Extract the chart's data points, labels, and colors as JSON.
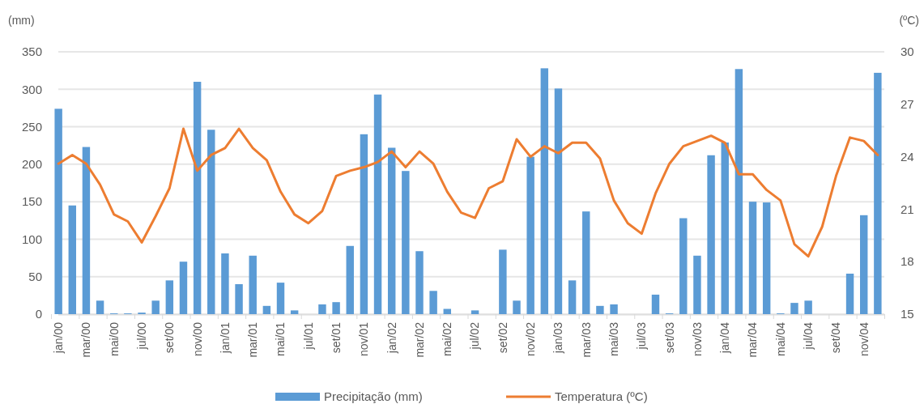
{
  "chart_data": {
    "type": "bar",
    "ylabel": "(mm)",
    "y2label": "(ºC)",
    "categories": [
      "jan/00",
      null,
      "mar/00",
      null,
      "mai/00",
      null,
      "jul/00",
      null,
      "set/00",
      null,
      "nov/00",
      null,
      "jan/01",
      null,
      "mar/01",
      null,
      "mai/01",
      null,
      "jul/01",
      null,
      "set/01",
      null,
      "nov/01",
      null,
      "jan/02",
      null,
      "mar/02",
      null,
      "mai/02",
      null,
      "jul/02",
      null,
      "set/02",
      null,
      "nov/02",
      null,
      "jan/03",
      null,
      "mar/03",
      null,
      "mai/03",
      null,
      "jul/03",
      null,
      "set/03",
      null,
      "nov/03",
      null,
      "jan/04",
      null,
      "mar/04",
      null,
      "mai/04",
      null,
      "jul/04",
      null,
      "set/04",
      null,
      "nov/04",
      null
    ],
    "series": [
      {
        "name": "Precipitação (mm)",
        "color": "#5b9bd5",
        "values": [
          274,
          145,
          223,
          18,
          1,
          1,
          2,
          18,
          45,
          70,
          310,
          246,
          81,
          40,
          78,
          11,
          42,
          5,
          0,
          13,
          16,
          91,
          240,
          293,
          222,
          191,
          84,
          31,
          7,
          0,
          5,
          0,
          86,
          18,
          210,
          328,
          301,
          45,
          137,
          11,
          13,
          0,
          0,
          26,
          1,
          128,
          78,
          212,
          229,
          327,
          150,
          149,
          1,
          15,
          18,
          0,
          0,
          54,
          132,
          322
        ]
      },
      {
        "name": "Temperatura (ºC)",
        "type": "line",
        "axis": "y2",
        "color": "#ed7d31",
        "values": [
          23.6,
          24.1,
          23.6,
          22.4,
          20.7,
          20.3,
          19.1,
          20.6,
          22.2,
          25.6,
          23.2,
          24.1,
          24.5,
          25.6,
          24.5,
          23.8,
          22.0,
          20.7,
          20.2,
          20.9,
          22.9,
          23.2,
          23.4,
          23.7,
          24.3,
          23.4,
          24.3,
          23.6,
          22.0,
          20.8,
          20.5,
          22.2,
          22.6,
          25.0,
          24.0,
          24.6,
          24.2,
          24.8,
          24.8,
          23.9,
          21.5,
          20.2,
          19.6,
          21.9,
          23.6,
          24.6,
          24.9,
          25.2,
          24.8,
          23.0,
          23.0,
          22.1,
          21.5,
          19.0,
          18.3,
          20.0,
          22.9,
          25.1,
          24.9,
          24.1
        ]
      }
    ],
    "ylim": [
      0,
      350
    ],
    "yticks": [
      0,
      50,
      100,
      150,
      200,
      250,
      300,
      350
    ],
    "y2lim": [
      15,
      30
    ],
    "y2ticks": [
      15,
      18,
      21,
      24,
      27,
      30
    ],
    "grid": "y",
    "legend": "bottom",
    "line_style": "solid",
    "marker": "none"
  }
}
